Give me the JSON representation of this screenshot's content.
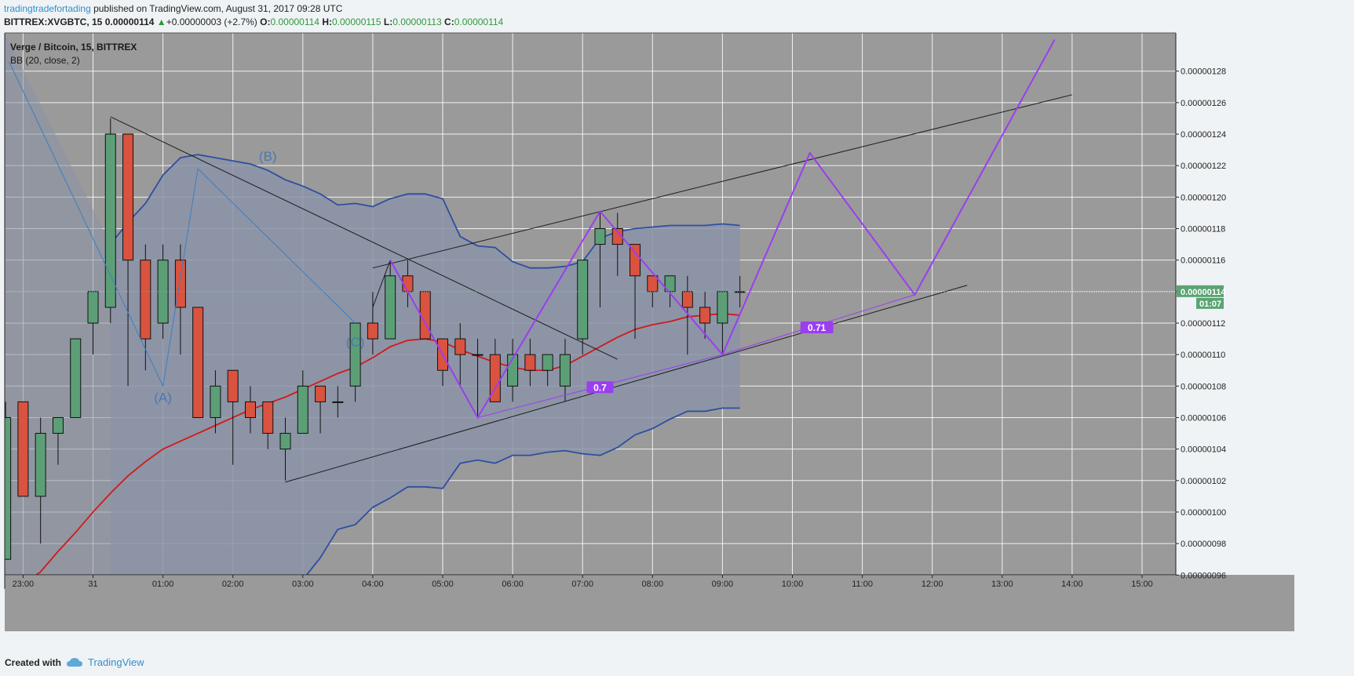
{
  "header": {
    "author": "tradingtradefortading",
    "published_text": " published on TradingView.com, August 31, 2017 09:28 UTC",
    "symbol": "BITTREX:XVGBTC, 15",
    "last": "0.00000114",
    "arrow": "▲",
    "change": "+0.00000003 (+2.7%)",
    "o_label": "O:",
    "o_value": "0.00000114",
    "h_label": "H:",
    "h_value": "0.00000115",
    "l_label": "L:",
    "l_value": "0.00000113",
    "c_label": "C:",
    "c_value": "0.00000114"
  },
  "legend": {
    "title": "Verge / Bitcoin, 15, BITTREX",
    "indicator": "BB (20, close, 2)"
  },
  "footer": {
    "created_with": "Created with",
    "brand": "TradingView"
  },
  "colors": {
    "background": "#9a9a9a",
    "grid": "#ffffff",
    "candle_up": "#5c9f77",
    "candle_down": "#d9533f",
    "bb_band": "#2e4fa0",
    "bb_basis": "#d11a1a",
    "band_fill": "#8b93a8",
    "wave": "#9a3ef0",
    "wave_light": "#3a7fc2",
    "trend": "#1c1c1c",
    "price_label": "#5aa473"
  },
  "chart_data": {
    "type": "candlestick",
    "title": "Verge / Bitcoin, 15, BITTREX",
    "y_unit": "BTC (x 1e-8)",
    "ylim": [
      94.6,
      130
    ],
    "y_ticks": [
      96,
      98,
      100,
      102,
      104,
      106,
      108,
      110,
      112,
      114,
      116,
      118,
      120,
      122,
      124,
      126,
      128
    ],
    "y_tick_labels": [
      "0.00000096",
      "0.00000098",
      "0.00000100",
      "0.00000102",
      "0.00000104",
      "0.00000106",
      "0.00000108",
      "0.00000110",
      "0.00000112",
      "0.00000114",
      "0.00000116",
      "0.00000118",
      "0.00000120",
      "0.00000122",
      "0.00000124",
      "0.00000126",
      "0.00000128"
    ],
    "x_ticks": [
      {
        "t": -1,
        "label": "23:00"
      },
      {
        "t": 0,
        "label": "31"
      },
      {
        "t": 1,
        "label": "01:00"
      },
      {
        "t": 2,
        "label": "02:00"
      },
      {
        "t": 3,
        "label": "03:00"
      },
      {
        "t": 4,
        "label": "04:00"
      },
      {
        "t": 5,
        "label": "05:00"
      },
      {
        "t": 6,
        "label": "06:00"
      },
      {
        "t": 7,
        "label": "07:00"
      },
      {
        "t": 8,
        "label": "08:00"
      },
      {
        "t": 9,
        "label": "09:00"
      },
      {
        "t": 10,
        "label": "10:00"
      },
      {
        "t": 11,
        "label": "11:00"
      },
      {
        "t": 12,
        "label": "12:00"
      },
      {
        "t": 13,
        "label": "13:00"
      },
      {
        "t": 14,
        "label": "14:00"
      },
      {
        "t": 15,
        "label": "15:00"
      }
    ],
    "xlim": [
      -1.2,
      15.5
    ],
    "last_price_label": "0.00000114",
    "countdown": "01:07",
    "candles_note": "[hours since 00:00 Aug 31, open, high, low, close]",
    "candles": [
      [
        -1.25,
        97,
        107,
        97,
        106
      ],
      [
        -1.0,
        107,
        107,
        101,
        101
      ],
      [
        -0.75,
        101,
        106,
        98,
        105
      ],
      [
        -0.5,
        105,
        106,
        103,
        106
      ],
      [
        -0.25,
        106,
        111,
        106,
        111
      ],
      [
        0.0,
        112,
        114,
        110,
        114
      ],
      [
        0.25,
        113,
        125,
        112,
        124
      ],
      [
        0.5,
        124,
        124,
        108,
        116
      ],
      [
        0.75,
        116,
        117,
        109,
        111
      ],
      [
        1.0,
        112,
        117,
        111,
        116
      ],
      [
        1.25,
        116,
        117,
        110,
        113
      ],
      [
        1.5,
        113,
        113,
        106,
        106
      ],
      [
        1.75,
        106,
        109,
        105,
        108
      ],
      [
        2.0,
        109,
        109,
        103,
        107
      ],
      [
        2.25,
        107,
        108,
        105,
        106
      ],
      [
        2.5,
        107,
        107,
        104,
        105
      ],
      [
        2.75,
        104,
        106,
        102,
        105
      ],
      [
        3.0,
        105,
        109,
        105,
        108
      ],
      [
        3.25,
        108,
        108,
        105,
        107
      ],
      [
        3.5,
        107,
        108,
        106,
        107
      ],
      [
        3.75,
        108,
        112,
        107,
        112
      ],
      [
        4.0,
        112,
        114,
        110,
        111
      ],
      [
        4.25,
        111,
        116,
        111,
        115
      ],
      [
        4.5,
        115,
        116,
        113,
        114
      ],
      [
        4.75,
        114,
        114,
        111,
        111
      ],
      [
        5.0,
        111,
        111,
        108,
        109
      ],
      [
        5.25,
        111,
        112,
        108,
        110
      ],
      [
        5.5,
        110,
        111,
        106,
        110
      ],
      [
        5.75,
        110,
        111,
        107,
        107
      ],
      [
        6.0,
        108,
        111,
        107,
        110
      ],
      [
        6.25,
        110,
        111,
        108,
        109
      ],
      [
        6.5,
        109,
        110,
        108,
        110
      ],
      [
        6.75,
        108,
        111,
        107,
        110
      ],
      [
        7.0,
        111,
        116,
        110,
        116
      ],
      [
        7.25,
        117,
        119,
        113,
        118
      ],
      [
        7.5,
        118,
        119,
        115,
        117
      ],
      [
        7.75,
        117,
        117,
        111,
        115
      ],
      [
        8.0,
        115,
        115,
        113,
        114
      ],
      [
        8.25,
        114,
        115,
        113,
        115
      ],
      [
        8.5,
        114,
        115,
        110,
        113
      ],
      [
        8.75,
        113,
        114,
        111,
        112
      ],
      [
        9.0,
        112,
        114,
        110,
        114
      ],
      [
        9.25,
        114,
        115,
        113,
        114
      ]
    ],
    "bb_upper": [
      [
        0.25,
        117
      ],
      [
        0.5,
        118.4
      ],
      [
        0.75,
        119.6
      ],
      [
        1.0,
        121.4
      ],
      [
        1.25,
        122.5
      ],
      [
        1.5,
        122.7
      ],
      [
        1.75,
        122.5
      ],
      [
        2.0,
        122.3
      ],
      [
        2.25,
        122.1
      ],
      [
        2.5,
        121.7
      ],
      [
        2.75,
        121.1
      ],
      [
        3.0,
        120.7
      ],
      [
        3.25,
        120.2
      ],
      [
        3.5,
        119.5
      ],
      [
        3.75,
        119.6
      ],
      [
        4.0,
        119.4
      ],
      [
        4.25,
        119.9
      ],
      [
        4.5,
        120.2
      ],
      [
        4.75,
        120.2
      ],
      [
        5.0,
        119.9
      ],
      [
        5.25,
        117.5
      ],
      [
        5.5,
        116.9
      ],
      [
        5.75,
        116.8
      ],
      [
        6.0,
        115.9
      ],
      [
        6.25,
        115.5
      ],
      [
        6.5,
        115.5
      ],
      [
        6.75,
        115.6
      ],
      [
        7.0,
        115.9
      ],
      [
        7.25,
        117.4
      ],
      [
        7.5,
        117.8
      ],
      [
        7.75,
        118
      ],
      [
        8.0,
        118.1
      ],
      [
        8.25,
        118.2
      ],
      [
        8.5,
        118.2
      ],
      [
        8.75,
        118.2
      ],
      [
        9.0,
        118.3
      ],
      [
        9.25,
        118.2
      ]
    ],
    "bb_basis": [
      [
        -1.2,
        94.8
      ],
      [
        -0.75,
        96.2
      ],
      [
        -0.5,
        97.5
      ],
      [
        -0.25,
        98.7
      ],
      [
        0.0,
        100
      ],
      [
        0.25,
        101.2
      ],
      [
        0.5,
        102.3
      ],
      [
        0.75,
        103.2
      ],
      [
        1.0,
        104
      ],
      [
        1.25,
        104.5
      ],
      [
        1.5,
        105
      ],
      [
        1.75,
        105.5
      ],
      [
        2.0,
        106
      ],
      [
        2.25,
        106.5
      ],
      [
        2.5,
        106.9
      ],
      [
        2.75,
        107.3
      ],
      [
        3.0,
        107.8
      ],
      [
        3.25,
        108.3
      ],
      [
        3.5,
        108.8
      ],
      [
        3.75,
        109.2
      ],
      [
        4.0,
        109.8
      ],
      [
        4.25,
        110.5
      ],
      [
        4.5,
        110.9
      ],
      [
        4.75,
        111
      ],
      [
        5.0,
        110.8
      ],
      [
        5.25,
        110.3
      ],
      [
        5.5,
        109.9
      ],
      [
        5.75,
        109.5
      ],
      [
        6.0,
        109.2
      ],
      [
        6.25,
        109
      ],
      [
        6.5,
        109
      ],
      [
        6.75,
        109.3
      ],
      [
        7.0,
        109.9
      ],
      [
        7.25,
        110.5
      ],
      [
        7.5,
        111.1
      ],
      [
        7.75,
        111.6
      ],
      [
        8.0,
        111.9
      ],
      [
        8.25,
        112.1
      ],
      [
        8.5,
        112.4
      ],
      [
        8.75,
        112.5
      ],
      [
        9.0,
        112.6
      ],
      [
        9.25,
        112.5
      ]
    ],
    "bb_lower": [
      [
        3.0,
        95.7
      ],
      [
        3.25,
        97.1
      ],
      [
        3.5,
        98.9
      ],
      [
        3.75,
        99.2
      ],
      [
        4.0,
        100.3
      ],
      [
        4.25,
        100.9
      ],
      [
        4.5,
        101.6
      ],
      [
        4.75,
        101.6
      ],
      [
        5.0,
        101.5
      ],
      [
        5.25,
        103.1
      ],
      [
        5.5,
        103.3
      ],
      [
        5.75,
        103.1
      ],
      [
        6.0,
        103.6
      ],
      [
        6.25,
        103.6
      ],
      [
        6.5,
        103.8
      ],
      [
        6.75,
        103.9
      ],
      [
        7.0,
        103.7
      ],
      [
        7.25,
        103.6
      ],
      [
        7.5,
        104.1
      ],
      [
        7.75,
        104.9
      ],
      [
        8.0,
        105.3
      ],
      [
        8.25,
        105.9
      ],
      [
        8.5,
        106.4
      ],
      [
        8.75,
        106.4
      ],
      [
        9.0,
        106.6
      ],
      [
        9.25,
        106.6
      ]
    ],
    "annotations": {
      "abc_wave": [
        [
          -1.2,
          128.6
        ],
        [
          1.0,
          108
        ],
        [
          1.5,
          121.8
        ],
        [
          3.75,
          112
        ]
      ],
      "abc_labels": [
        {
          "t": 1.0,
          "v": 107,
          "label": "(A)"
        },
        {
          "t": 2.5,
          "v": 122.3,
          "label": "(B)"
        },
        {
          "t": 3.75,
          "v": 110.5,
          "label": "(C)"
        }
      ],
      "purple_wave": [
        [
          4.25,
          116
        ],
        [
          5.5,
          106
        ],
        [
          7.25,
          119.1
        ],
        [
          9.0,
          110
        ],
        [
          10.25,
          122.8
        ],
        [
          11.75,
          113.8
        ],
        [
          13.75,
          130
        ]
      ],
      "purple_ratio_lines": [
        [
          [
            5.5,
            106
          ],
          [
            9.0,
            110
          ]
        ],
        [
          [
            9.0,
            110
          ],
          [
            11.75,
            113.8
          ]
        ]
      ],
      "ratio_labels": [
        {
          "t": 7.25,
          "v": 107.9,
          "label": "0.7"
        },
        {
          "t": 10.35,
          "v": 111.7,
          "label": "0.71"
        }
      ],
      "trend_lines": [
        [
          [
            0.25,
            125.1
          ],
          [
            7.5,
            109.7
          ]
        ],
        [
          [
            2.75,
            101.9
          ],
          [
            12.5,
            114.4
          ]
        ],
        [
          [
            4.0,
            115.5
          ],
          [
            14.0,
            126.5
          ]
        ],
        [
          [
            4.0,
            113
          ],
          [
            4.25,
            116
          ]
        ]
      ]
    }
  }
}
